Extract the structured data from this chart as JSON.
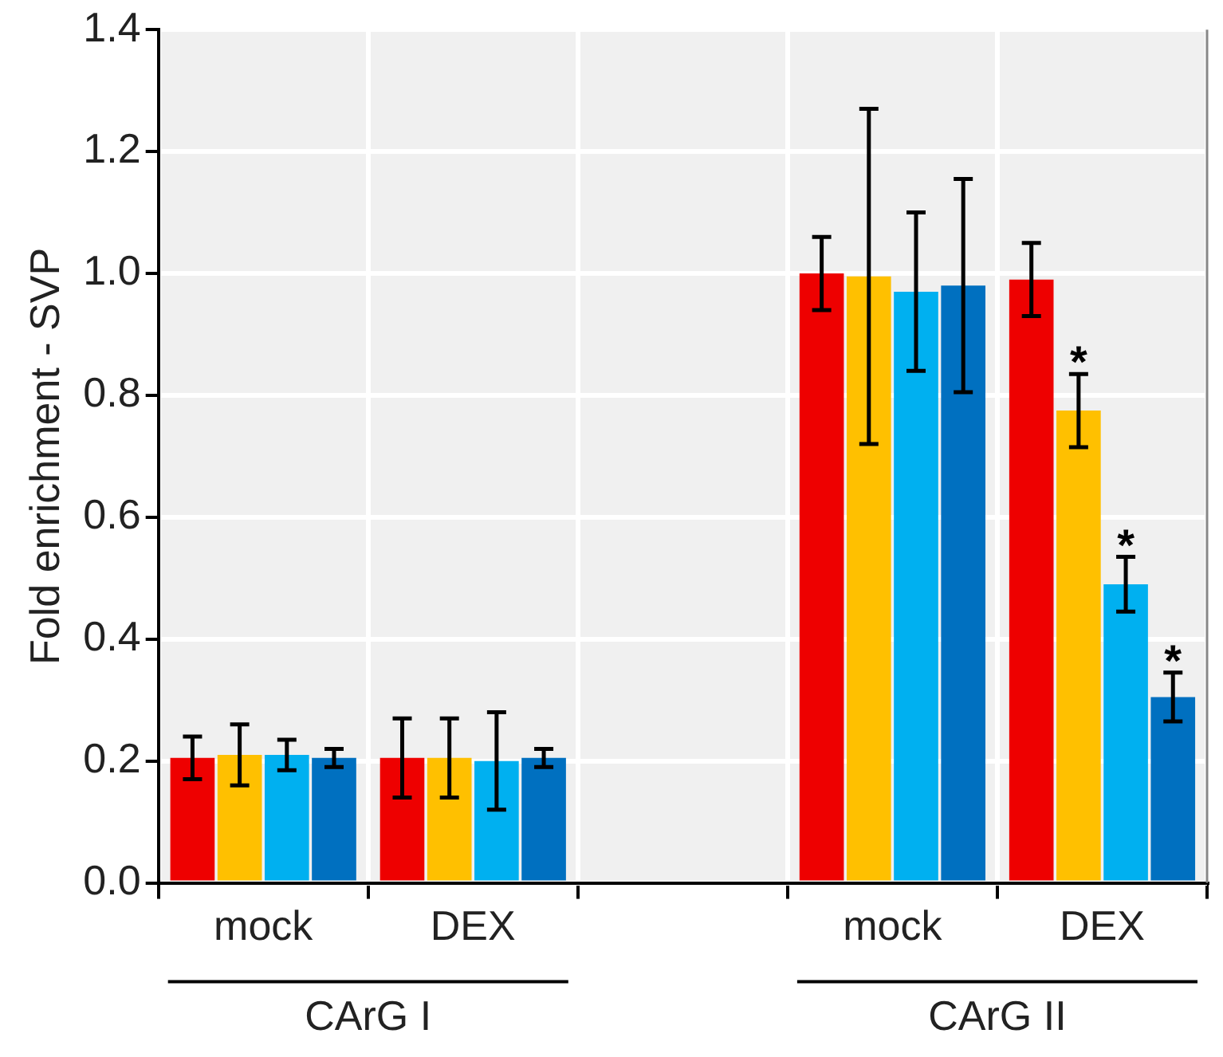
{
  "chart_data": {
    "type": "bar",
    "ylabel": "Fold enrichment - SVP",
    "categories": [
      "mock",
      "DEX",
      null,
      "mock",
      "DEX"
    ],
    "series": [
      {
        "color": "#ee0000",
        "values": [
          0.205,
          0.205,
          null,
          1.0,
          0.99
        ],
        "errors": [
          0.035,
          0.065,
          null,
          0.06,
          0.06
        ]
      },
      {
        "color": "#ffc000",
        "values": [
          0.21,
          0.205,
          null,
          0.995,
          0.775
        ],
        "errors": [
          0.05,
          0.065,
          null,
          0.275,
          0.06
        ],
        "value_labels": [
          null,
          null,
          null,
          null,
          "*"
        ]
      },
      {
        "color": "#00b0f0",
        "values": [
          0.21,
          0.2,
          null,
          0.97,
          0.49
        ],
        "errors": [
          0.025,
          0.08,
          null,
          0.13,
          0.045
        ],
        "value_labels": [
          null,
          null,
          null,
          null,
          "*"
        ]
      },
      {
        "color": "#0070c0",
        "values": [
          0.205,
          0.205,
          null,
          0.98,
          0.305
        ],
        "errors": [
          0.015,
          0.015,
          null,
          0.175,
          0.04
        ],
        "value_labels": [
          null,
          null,
          null,
          null,
          "*"
        ]
      }
    ],
    "ylim": [
      0,
      1.4
    ],
    "yticks": [
      {
        "value": 0,
        "label": "0.0"
      },
      {
        "value": 0.2,
        "label": "0.2"
      },
      {
        "value": 0.4,
        "label": "0.4"
      },
      {
        "value": 0.6,
        "label": "0.6"
      },
      {
        "value": 0.8,
        "label": "0.8"
      },
      {
        "value": 1,
        "label": "1.0"
      },
      {
        "value": 1.2,
        "label": "1.2"
      },
      {
        "value": 1.4,
        "label": "1.4"
      }
    ],
    "grid": true,
    "legend": false,
    "annotations": [
      "CArG I",
      "CArG II"
    ]
  }
}
